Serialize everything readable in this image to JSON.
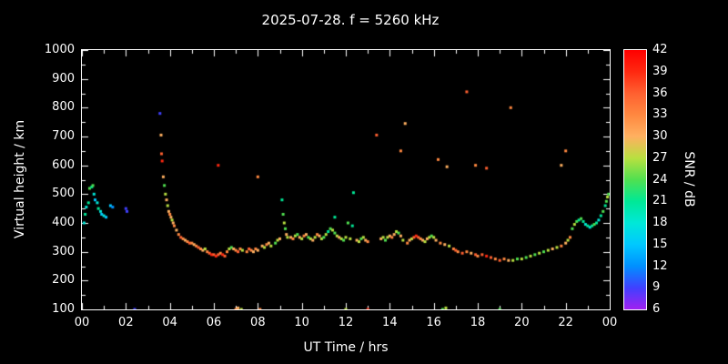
{
  "title": "2025-07-28. f = 5260 kHz",
  "axes": {
    "x_label": "UT Time / hrs",
    "y_label": "Virtual height / km",
    "x_ticks": [
      "00",
      "02",
      "04",
      "06",
      "08",
      "10",
      "12",
      "14",
      "16",
      "18",
      "20",
      "22",
      "00"
    ],
    "y_ticks": [
      100,
      200,
      300,
      400,
      500,
      600,
      700,
      800,
      900,
      1000
    ],
    "x_range": [
      0,
      24
    ],
    "y_range": [
      100,
      1000
    ]
  },
  "colorbar": {
    "label": "SNR / dB",
    "ticks": [
      42,
      39,
      36,
      33,
      30,
      27,
      24,
      21,
      18,
      15,
      12,
      9,
      6
    ],
    "min": 6,
    "max": 42,
    "stops": [
      {
        "v": 6,
        "c": "#a020f0"
      },
      {
        "v": 9,
        "c": "#4040ff"
      },
      {
        "v": 12,
        "c": "#0090ff"
      },
      {
        "v": 15,
        "c": "#00c8ff"
      },
      {
        "v": 18,
        "c": "#00e8d8"
      },
      {
        "v": 21,
        "c": "#00e896"
      },
      {
        "v": 24,
        "c": "#50e050"
      },
      {
        "v": 27,
        "c": "#b8e040"
      },
      {
        "v": 30,
        "c": "#ffb060"
      },
      {
        "v": 33,
        "c": "#ff8840"
      },
      {
        "v": 36,
        "c": "#ff6030"
      },
      {
        "v": 39,
        "c": "#ff2810"
      },
      {
        "v": 42,
        "c": "#ff0000"
      }
    ]
  },
  "chart_data": {
    "type": "scatter",
    "title": "2025-07-28. f = 5260 kHz",
    "xlabel": "UT Time / hrs",
    "ylabel": "Virtual height / km",
    "color_label": "SNR / dB",
    "xlim": [
      0,
      24
    ],
    "ylim": [
      100,
      1000
    ],
    "clim": [
      6,
      42
    ],
    "points": [
      [
        0.1,
        400,
        18
      ],
      [
        0.15,
        430,
        21
      ],
      [
        0.2,
        455,
        18
      ],
      [
        0.3,
        470,
        21
      ],
      [
        0.35,
        520,
        24
      ],
      [
        0.45,
        525,
        21
      ],
      [
        0.5,
        530,
        24
      ],
      [
        0.55,
        500,
        18
      ],
      [
        0.6,
        480,
        15
      ],
      [
        0.7,
        470,
        18
      ],
      [
        0.75,
        450,
        21
      ],
      [
        0.85,
        440,
        18
      ],
      [
        0.9,
        430,
        15
      ],
      [
        1.0,
        425,
        18
      ],
      [
        1.1,
        420,
        15
      ],
      [
        1.3,
        460,
        15
      ],
      [
        1.4,
        455,
        12
      ],
      [
        2.0,
        450,
        9
      ],
      [
        2.05,
        440,
        9
      ],
      [
        2.4,
        100,
        9
      ],
      [
        3.55,
        780,
        9
      ],
      [
        3.6,
        705,
        30
      ],
      [
        3.62,
        640,
        36
      ],
      [
        3.65,
        615,
        39
      ],
      [
        3.7,
        560,
        30
      ],
      [
        3.75,
        530,
        24
      ],
      [
        3.8,
        500,
        27
      ],
      [
        3.85,
        480,
        30
      ],
      [
        3.9,
        460,
        27
      ],
      [
        3.95,
        440,
        30
      ],
      [
        4.0,
        430,
        33
      ],
      [
        4.05,
        420,
        30
      ],
      [
        4.1,
        410,
        27
      ],
      [
        4.15,
        400,
        30
      ],
      [
        4.2,
        390,
        33
      ],
      [
        4.3,
        375,
        30
      ],
      [
        4.4,
        360,
        33
      ],
      [
        4.5,
        350,
        36
      ],
      [
        4.6,
        345,
        33
      ],
      [
        4.7,
        340,
        30
      ],
      [
        4.8,
        335,
        33
      ],
      [
        4.9,
        330,
        36
      ],
      [
        5.0,
        330,
        33
      ],
      [
        5.1,
        325,
        30
      ],
      [
        5.2,
        320,
        33
      ],
      [
        5.3,
        315,
        36
      ],
      [
        5.4,
        310,
        33
      ],
      [
        5.5,
        305,
        30
      ],
      [
        5.6,
        310,
        27
      ],
      [
        5.7,
        300,
        33
      ],
      [
        5.8,
        295,
        36
      ],
      [
        5.9,
        290,
        39
      ],
      [
        6.0,
        290,
        36
      ],
      [
        6.1,
        285,
        39
      ],
      [
        6.2,
        290,
        36
      ],
      [
        6.3,
        295,
        33
      ],
      [
        6.4,
        290,
        39
      ],
      [
        6.5,
        285,
        36
      ],
      [
        6.2,
        600,
        39
      ],
      [
        6.6,
        300,
        33
      ],
      [
        6.7,
        310,
        27
      ],
      [
        6.8,
        315,
        24
      ],
      [
        6.9,
        310,
        30
      ],
      [
        7.0,
        305,
        33
      ],
      [
        7.1,
        300,
        36
      ],
      [
        7.2,
        310,
        33
      ],
      [
        7.3,
        305,
        27
      ],
      [
        7.5,
        300,
        33
      ],
      [
        7.6,
        310,
        36
      ],
      [
        7.7,
        305,
        33
      ],
      [
        7.8,
        300,
        30
      ],
      [
        7.9,
        310,
        33
      ],
      [
        8.0,
        305,
        30
      ],
      [
        7.0,
        100,
        33
      ],
      [
        7.1,
        105,
        30
      ],
      [
        7.25,
        100,
        27
      ],
      [
        8.1,
        100,
        33
      ],
      [
        8.0,
        560,
        33
      ],
      [
        8.2,
        320,
        30
      ],
      [
        8.3,
        315,
        27
      ],
      [
        8.4,
        325,
        33
      ],
      [
        8.5,
        330,
        30
      ],
      [
        8.6,
        320,
        27
      ],
      [
        8.8,
        330,
        24
      ],
      [
        8.9,
        340,
        27
      ],
      [
        9.0,
        345,
        30
      ],
      [
        9.1,
        480,
        21
      ],
      [
        9.15,
        430,
        24
      ],
      [
        9.2,
        400,
        27
      ],
      [
        9.25,
        380,
        24
      ],
      [
        9.3,
        360,
        30
      ],
      [
        9.35,
        350,
        27
      ],
      [
        9.5,
        350,
        30
      ],
      [
        9.6,
        345,
        33
      ],
      [
        9.7,
        355,
        27
      ],
      [
        9.8,
        360,
        24
      ],
      [
        9.9,
        350,
        30
      ],
      [
        10.0,
        345,
        27
      ],
      [
        10.1,
        355,
        33
      ],
      [
        10.2,
        360,
        30
      ],
      [
        10.3,
        350,
        24
      ],
      [
        10.4,
        345,
        27
      ],
      [
        10.5,
        340,
        30
      ],
      [
        10.6,
        350,
        27
      ],
      [
        10.7,
        360,
        33
      ],
      [
        10.8,
        355,
        30
      ],
      [
        10.9,
        345,
        27
      ],
      [
        11.0,
        350,
        24
      ],
      [
        11.1,
        360,
        27
      ],
      [
        11.2,
        370,
        21
      ],
      [
        11.3,
        380,
        24
      ],
      [
        11.4,
        375,
        27
      ],
      [
        11.5,
        420,
        21
      ],
      [
        11.5,
        365,
        24
      ],
      [
        11.6,
        355,
        27
      ],
      [
        11.7,
        350,
        30
      ],
      [
        11.8,
        345,
        27
      ],
      [
        11.9,
        340,
        24
      ],
      [
        12.0,
        350,
        27
      ],
      [
        12.1,
        400,
        24
      ],
      [
        12.3,
        390,
        21
      ],
      [
        12.35,
        505,
        21
      ],
      [
        12.0,
        100,
        27
      ],
      [
        12.2,
        345,
        27
      ],
      [
        12.5,
        340,
        30
      ],
      [
        12.6,
        335,
        27
      ],
      [
        12.7,
        345,
        24
      ],
      [
        12.8,
        350,
        27
      ],
      [
        12.9,
        340,
        30
      ],
      [
        13.0,
        335,
        33
      ],
      [
        13.0,
        100,
        39
      ],
      [
        13.4,
        705,
        36
      ],
      [
        13.6,
        345,
        30
      ],
      [
        13.7,
        350,
        27
      ],
      [
        13.8,
        340,
        24
      ],
      [
        13.9,
        350,
        27
      ],
      [
        14.0,
        355,
        30
      ],
      [
        14.1,
        350,
        33
      ],
      [
        14.2,
        360,
        30
      ],
      [
        14.3,
        370,
        27
      ],
      [
        14.4,
        365,
        24
      ],
      [
        14.5,
        355,
        30
      ],
      [
        14.5,
        650,
        33
      ],
      [
        14.7,
        745,
        30
      ],
      [
        14.6,
        340,
        27
      ],
      [
        14.8,
        330,
        33
      ],
      [
        14.9,
        340,
        30
      ],
      [
        15.0,
        345,
        27
      ],
      [
        15.1,
        350,
        36
      ],
      [
        15.2,
        355,
        39
      ],
      [
        15.3,
        350,
        36
      ],
      [
        15.4,
        345,
        33
      ],
      [
        15.5,
        340,
        30
      ],
      [
        15.6,
        335,
        27
      ],
      [
        15.7,
        345,
        30
      ],
      [
        15.8,
        350,
        27
      ],
      [
        15.9,
        355,
        24
      ],
      [
        16.0,
        350,
        27
      ],
      [
        16.2,
        620,
        33
      ],
      [
        16.6,
        595,
        30
      ],
      [
        17.5,
        855,
        36
      ],
      [
        17.9,
        600,
        33
      ],
      [
        18.4,
        590,
        36
      ],
      [
        19.5,
        800,
        33
      ],
      [
        21.8,
        600,
        30
      ],
      [
        22.0,
        650,
        33
      ],
      [
        16.1,
        340,
        30
      ],
      [
        16.3,
        330,
        33
      ],
      [
        16.5,
        325,
        30
      ],
      [
        16.7,
        320,
        27
      ],
      [
        16.9,
        310,
        33
      ],
      [
        17.0,
        305,
        36
      ],
      [
        17.1,
        300,
        33
      ],
      [
        17.3,
        295,
        36
      ],
      [
        17.5,
        300,
        33
      ],
      [
        17.7,
        295,
        30
      ],
      [
        17.9,
        290,
        36
      ],
      [
        18.0,
        285,
        33
      ],
      [
        18.2,
        290,
        36
      ],
      [
        18.4,
        285,
        39
      ],
      [
        18.6,
        280,
        36
      ],
      [
        18.8,
        275,
        33
      ],
      [
        19.0,
        270,
        36
      ],
      [
        19.2,
        275,
        33
      ],
      [
        19.4,
        270,
        30
      ],
      [
        16.4,
        100,
        24
      ],
      [
        16.55,
        105,
        27
      ],
      [
        19.0,
        100,
        24
      ],
      [
        19.6,
        270,
        27
      ],
      [
        19.8,
        275,
        24
      ],
      [
        20.0,
        275,
        27
      ],
      [
        20.2,
        280,
        24
      ],
      [
        20.4,
        285,
        27
      ],
      [
        20.6,
        290,
        24
      ],
      [
        20.8,
        295,
        27
      ],
      [
        21.0,
        300,
        24
      ],
      [
        21.2,
        305,
        27
      ],
      [
        21.4,
        310,
        30
      ],
      [
        21.6,
        315,
        27
      ],
      [
        21.8,
        320,
        33
      ],
      [
        22.0,
        330,
        30
      ],
      [
        22.1,
        340,
        27
      ],
      [
        22.2,
        350,
        33
      ],
      [
        22.3,
        380,
        24
      ],
      [
        22.4,
        395,
        27
      ],
      [
        22.5,
        405,
        24
      ],
      [
        22.6,
        410,
        21
      ],
      [
        22.7,
        415,
        24
      ],
      [
        22.8,
        405,
        21
      ],
      [
        22.9,
        395,
        18
      ],
      [
        23.0,
        390,
        21
      ],
      [
        23.1,
        385,
        18
      ],
      [
        23.2,
        390,
        21
      ],
      [
        23.3,
        395,
        24
      ],
      [
        23.4,
        400,
        21
      ],
      [
        23.5,
        410,
        18
      ],
      [
        23.6,
        425,
        21
      ],
      [
        23.7,
        440,
        24
      ],
      [
        23.8,
        460,
        21
      ],
      [
        23.85,
        475,
        24
      ],
      [
        23.9,
        490,
        27
      ],
      [
        23.95,
        500,
        24
      ]
    ]
  }
}
